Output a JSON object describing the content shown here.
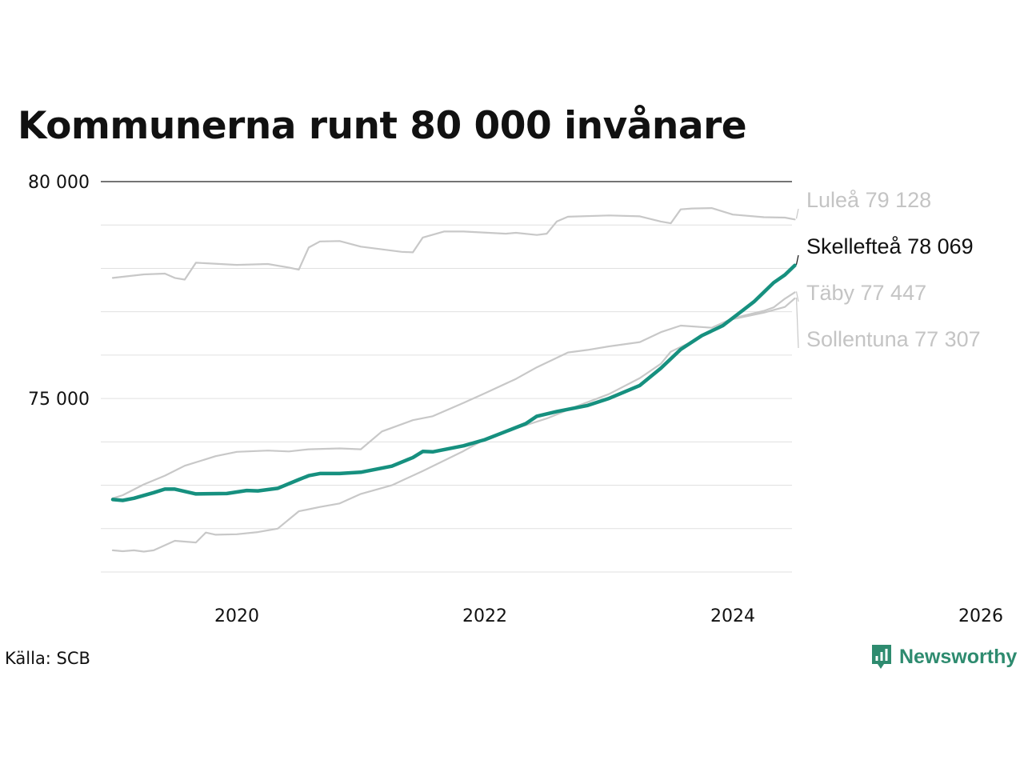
{
  "title": "Kommunerna runt 80 000 invånare",
  "source": "Källa: SCB",
  "brand": {
    "name": "Newsworthy",
    "icon": "bar-chart-logo-icon"
  },
  "colors": {
    "highlight": "#16907f",
    "context": "#c8c8c8",
    "context_label": "#c4c4c4",
    "brand": "#2e8b6f"
  },
  "chart_data": {
    "type": "line",
    "ylim": [
      71000,
      80000
    ],
    "xlim": [
      2019.0,
      2026.2
    ],
    "yticks": [
      {
        "value": 75000,
        "label": "75 000"
      },
      {
        "value": 80000,
        "label": "80 000"
      }
    ],
    "xticks": [
      {
        "value": 2020,
        "label": "2020"
      },
      {
        "value": 2022,
        "label": "2022"
      },
      {
        "value": 2024,
        "label": "2024"
      },
      {
        "value": 2026,
        "label": "2026"
      }
    ],
    "gridlines": [
      71000,
      72000,
      73000,
      74000,
      75000,
      76000,
      77000,
      78000,
      79000,
      80000
    ],
    "series": [
      {
        "name": "Luleå",
        "label": "Luleå 79 128",
        "highlight": false,
        "x": [
          2019.0,
          2019.25,
          2019.42,
          2019.5,
          2019.58,
          2019.67,
          2020.0,
          2020.25,
          2020.42,
          2020.5,
          2020.58,
          2020.67,
          2020.83,
          2021.0,
          2021.33,
          2021.42,
          2021.5,
          2021.67,
          2021.83,
          2022.17,
          2022.25,
          2022.42,
          2022.5,
          2022.58,
          2022.67,
          2023.0,
          2023.25,
          2023.42,
          2023.5,
          2023.58,
          2023.67,
          2023.83,
          2024.0,
          2024.25,
          2024.42,
          2024.5
        ],
        "y": [
          77780,
          77860,
          77880,
          77780,
          77740,
          78130,
          78080,
          78100,
          78020,
          77970,
          78480,
          78620,
          78630,
          78500,
          78380,
          78370,
          78710,
          78850,
          78850,
          78800,
          78820,
          78770,
          78800,
          79080,
          79190,
          79220,
          79200,
          79080,
          79040,
          79360,
          79380,
          79390,
          79240,
          79180,
          79170,
          79128
        ]
      },
      {
        "name": "Täby",
        "label": "Täby 77 447",
        "highlight": false,
        "x": [
          2019.0,
          2019.08,
          2019.25,
          2019.42,
          2019.58,
          2019.83,
          2020.0,
          2020.25,
          2020.42,
          2020.58,
          2020.83,
          2021.0,
          2021.17,
          2021.42,
          2021.58,
          2021.83,
          2022.0,
          2022.25,
          2022.42,
          2022.67,
          2022.83,
          2023.0,
          2023.25,
          2023.42,
          2023.58,
          2023.83,
          2024.0,
          2024.25,
          2024.33,
          2024.42,
          2024.5
        ],
        "y": [
          72700,
          72770,
          73020,
          73220,
          73450,
          73670,
          73770,
          73800,
          73780,
          73830,
          73850,
          73830,
          74240,
          74500,
          74590,
          74900,
          75120,
          75450,
          75720,
          76060,
          76120,
          76200,
          76300,
          76530,
          76680,
          76630,
          76850,
          77020,
          77100,
          77300,
          77447
        ]
      },
      {
        "name": "Sollentuna",
        "label": "Sollentuna 77 307",
        "highlight": false,
        "x": [
          2019.0,
          2019.08,
          2019.17,
          2019.25,
          2019.33,
          2019.5,
          2019.67,
          2019.75,
          2019.83,
          2020.0,
          2020.17,
          2020.33,
          2020.5,
          2020.67,
          2020.83,
          2021.0,
          2021.25,
          2021.5,
          2021.83,
          2022.0,
          2022.25,
          2022.5,
          2022.75,
          2023.0,
          2023.25,
          2023.42,
          2023.5,
          2023.67,
          2023.83,
          2024.0,
          2024.25,
          2024.42,
          2024.5
        ],
        "y": [
          71500,
          71480,
          71500,
          71470,
          71500,
          71720,
          71680,
          71910,
          71860,
          71870,
          71920,
          72000,
          72400,
          72500,
          72580,
          72800,
          73000,
          73330,
          73790,
          74060,
          74310,
          74540,
          74830,
          75100,
          75470,
          75800,
          76080,
          76310,
          76560,
          76830,
          76980,
          77110,
          77307
        ]
      },
      {
        "name": "Skellefteå",
        "label": "Skellefteå 78 069",
        "highlight": true,
        "x": [
          2019.0,
          2019.08,
          2019.17,
          2019.33,
          2019.42,
          2019.5,
          2019.67,
          2019.92,
          2020.08,
          2020.17,
          2020.33,
          2020.5,
          2020.58,
          2020.67,
          2020.83,
          2021.0,
          2021.25,
          2021.42,
          2021.5,
          2021.58,
          2021.83,
          2022.0,
          2022.17,
          2022.33,
          2022.42,
          2022.58,
          2022.67,
          2022.83,
          2023.0,
          2023.25,
          2023.42,
          2023.58,
          2023.75,
          2023.92,
          2024.08,
          2024.17,
          2024.25,
          2024.33,
          2024.42,
          2024.5
        ],
        "y": [
          72670,
          72650,
          72700,
          72830,
          72910,
          72910,
          72800,
          72810,
          72880,
          72870,
          72930,
          73130,
          73220,
          73270,
          73270,
          73300,
          73440,
          73640,
          73780,
          73770,
          73910,
          74050,
          74240,
          74420,
          74590,
          74700,
          74750,
          74840,
          75000,
          75300,
          75700,
          76130,
          76450,
          76680,
          77030,
          77230,
          77450,
          77670,
          77850,
          78069
        ]
      }
    ]
  }
}
